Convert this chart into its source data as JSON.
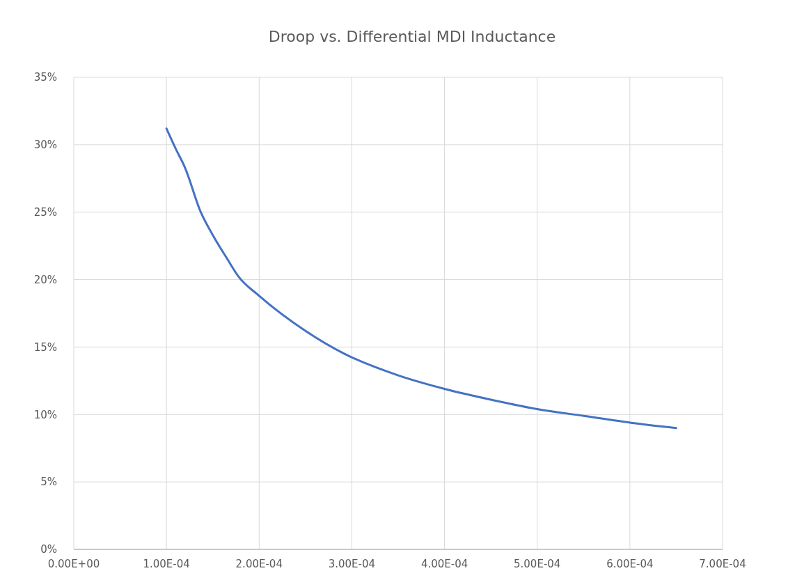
{
  "chart_data": {
    "type": "line",
    "title": "Droop vs. Differential MDI Inductance",
    "x": [
      0.0001,
      0.00011,
      0.00012,
      0.000137,
      0.00015,
      0.000165,
      0.000178,
      0.0002,
      0.00025,
      0.000292,
      0.00035,
      0.0004,
      0.00045,
      0.0005,
      0.00055,
      0.0006,
      0.00065
    ],
    "series": [
      {
        "color": "#4472c4",
        "values": [
          31.2,
          29.7,
          28.3,
          25.0,
          23.3,
          21.6,
          20.2,
          18.8,
          16.2,
          14.5,
          12.9,
          11.9,
          11.1,
          10.4,
          9.9,
          9.4,
          9.0
        ]
      }
    ],
    "xlim": [
      0,
      0.0007
    ],
    "xticks": [
      {
        "value": 0,
        "label": "0.00E+00"
      },
      {
        "value": 0.0001,
        "label": "1.00E-04"
      },
      {
        "value": 0.0002,
        "label": "2.00E-04"
      },
      {
        "value": 0.0003,
        "label": "3.00E-04"
      },
      {
        "value": 0.0004,
        "label": "4.00E-04"
      },
      {
        "value": 0.0005,
        "label": "5.00E-04"
      },
      {
        "value": 0.0006,
        "label": "6.00E-04"
      },
      {
        "value": 0.0007,
        "label": "7.00E-04"
      }
    ],
    "ylim": [
      0,
      35
    ],
    "yticks": [
      {
        "value": 0,
        "label": "0%"
      },
      {
        "value": 5,
        "label": "5%"
      },
      {
        "value": 10,
        "label": "10%"
      },
      {
        "value": 15,
        "label": "15%"
      },
      {
        "value": 20,
        "label": "20%"
      },
      {
        "value": 25,
        "label": "25%"
      },
      {
        "value": 30,
        "label": "30%"
      },
      {
        "value": 35,
        "label": "35%"
      }
    ],
    "grid": true,
    "marker": "none",
    "line_style": "solid"
  }
}
